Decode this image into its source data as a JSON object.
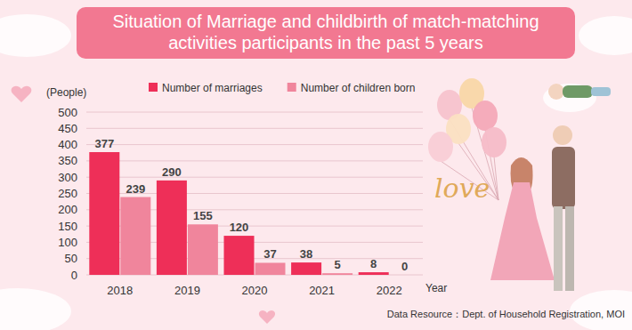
{
  "chart_data": {
    "type": "bar",
    "title": "Situation of Marriage and childbirth of match-matching activities participants in the past 5 years",
    "categories": [
      "2018",
      "2019",
      "2020",
      "2021",
      "2022"
    ],
    "series": [
      {
        "name": "Number of marriages",
        "color": "#ee2f58",
        "values": [
          377,
          290,
          120,
          38,
          8
        ]
      },
      {
        "name": "Number of children born",
        "color": "#f0859c",
        "values": [
          239,
          155,
          37,
          5,
          0
        ]
      }
    ],
    "ylim": [
      0,
      500
    ],
    "yticks": [
      0,
      50,
      100,
      150,
      200,
      250,
      300,
      350,
      400,
      450,
      500
    ],
    "ylabel": "(People)",
    "xlabel": "Year",
    "source": "Data Resource：Dept. of Household Registration, MOI",
    "annotations": [
      "love"
    ],
    "grid": true,
    "legend": "top",
    "data_labels": true
  }
}
